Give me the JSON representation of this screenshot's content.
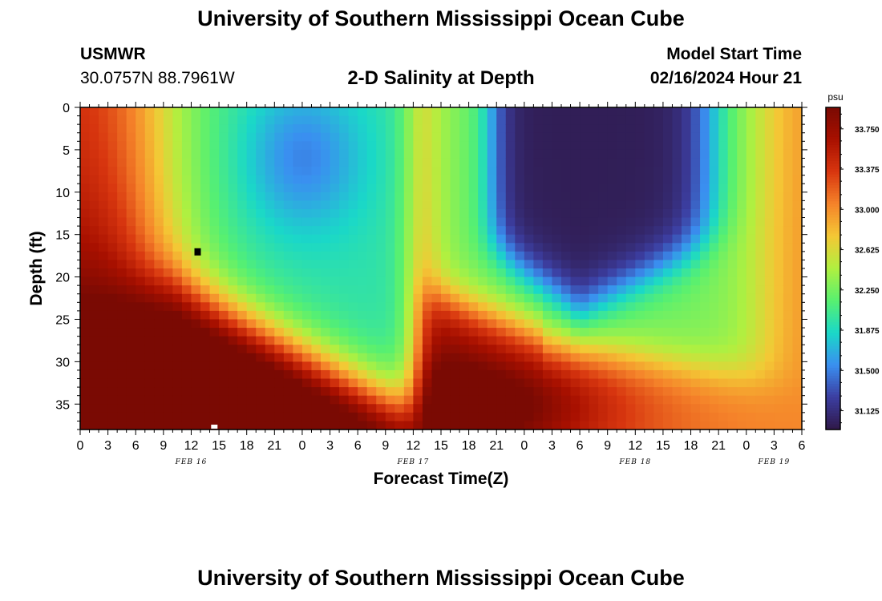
{
  "header": {
    "title": "University of Southern Mississippi Ocean Cube",
    "station": "USMWR",
    "coords": "30.0757N  88.7961W",
    "subtitle": "2-D Salinity at Depth",
    "start_label": "Model Start Time",
    "start_value": "02/16/2024 Hour 21"
  },
  "footer": {
    "title": "University of Southern Mississippi Ocean Cube"
  },
  "chart_data": {
    "type": "heatmap",
    "xlabel": "Forecast Time(Z)",
    "ylabel": "Depth (ft)",
    "xlim": [
      0,
      78
    ],
    "ylim": [
      0,
      38
    ],
    "x_tick_labels": [
      "0",
      "3",
      "6",
      "9",
      "12",
      "15",
      "18",
      "21",
      "0",
      "3",
      "6",
      "9",
      "12",
      "15",
      "18",
      "21",
      "0",
      "3",
      "6",
      "9",
      "12",
      "15",
      "18",
      "21",
      "0",
      "3",
      "6"
    ],
    "y_ticks": [
      0,
      5,
      10,
      15,
      20,
      25,
      30,
      35
    ],
    "y_tick_labels": [
      "0",
      "5",
      "10",
      "15",
      "20",
      "25",
      "30",
      "35"
    ],
    "day_labels": [
      {
        "text": "FEB 16",
        "hour": 12
      },
      {
        "text": "FEB 17",
        "hour": 36
      },
      {
        "text": "FEB 18",
        "hour": 60
      },
      {
        "text": "FEB 19",
        "hour": 75
      }
    ],
    "colorbar": {
      "unit": "psu",
      "min": 30.95,
      "max": 33.95,
      "tick_values": [
        31.125,
        31.5,
        31.875,
        32.25,
        32.625,
        33.0,
        33.375,
        33.75
      ],
      "tick_labels": [
        "31.125",
        "31.500",
        "31.875",
        "32.250",
        "32.625",
        "33.000",
        "33.375",
        "33.750"
      ]
    },
    "colors": {
      "stops": [
        "#2f1848",
        "#3c3ea1",
        "#3a8ff0",
        "#1ad8c8",
        "#58f070",
        "#b0f040",
        "#f4c835",
        "#f5832a",
        "#d8360f",
        "#a81000",
        "#7a0a03"
      ]
    },
    "markers": [
      {
        "hour": 12.7,
        "depth": 17,
        "color": "#000000"
      },
      {
        "hour": 14.5,
        "depth": 37.8,
        "color": "#ffffff"
      }
    ]
  }
}
